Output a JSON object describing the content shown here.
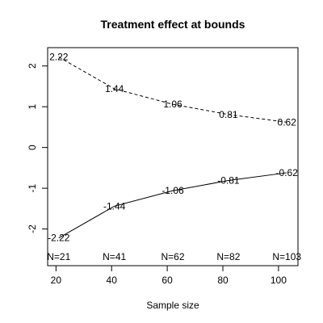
{
  "chart_data": {
    "type": "line",
    "title": "Treatment effect at bounds",
    "xlabel": "Sample size",
    "ylabel": "",
    "x": [
      21,
      41,
      62,
      82,
      103
    ],
    "xlim": [
      17,
      107
    ],
    "ylim": [
      -2.9,
      2.45
    ],
    "x_ticks": [
      20,
      40,
      60,
      80,
      100
    ],
    "y_ticks": [
      -2,
      -1,
      0,
      1,
      2
    ],
    "x_tick_labels": [
      "20",
      "40",
      "60",
      "80",
      "100"
    ],
    "y_tick_labels": [
      "-2",
      "-1",
      "0",
      "1",
      "2"
    ],
    "series": [
      {
        "line_style": "dashed",
        "values": [
          2.22,
          1.44,
          1.06,
          0.81,
          0.62
        ],
        "labels": [
          "2.22",
          "1.44",
          "1.06",
          "0.81",
          "0.62"
        ]
      },
      {
        "line_style": "solid",
        "values": [
          -2.22,
          -1.44,
          -1.06,
          -0.81,
          -0.62
        ],
        "labels": [
          "-2.22",
          "-1.44",
          "-1.06",
          "-0.81",
          "-0.62"
        ]
      }
    ],
    "n_labels": [
      "N=21",
      "N=41",
      "N=62",
      "N=82",
      "N=103"
    ],
    "grid": false,
    "legend": "none",
    "colors": {
      "line": "#000000",
      "text": "#000000",
      "background": "#ffffff"
    }
  }
}
